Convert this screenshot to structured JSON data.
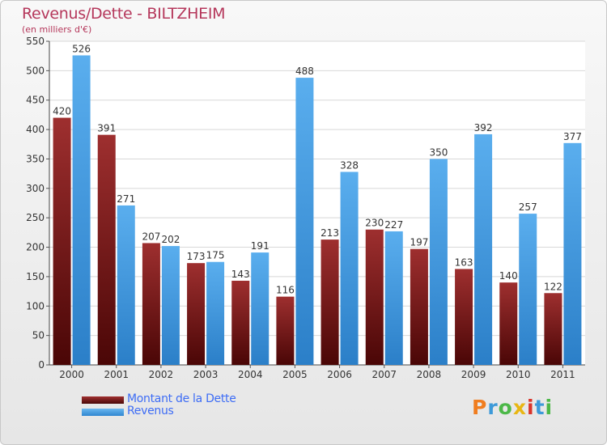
{
  "chart_data": {
    "type": "bar",
    "title": "Revenus/Dette - BILTZHEIM",
    "subtitle": "(en milliers d'€)",
    "categories": [
      "2000",
      "2001",
      "2002",
      "2003",
      "2004",
      "2005",
      "2006",
      "2007",
      "2008",
      "2009",
      "2010",
      "2011"
    ],
    "series": [
      {
        "name": "Montant de la Dette",
        "color": "#7a1a1a",
        "values": [
          420,
          391,
          207,
          173,
          143,
          116,
          213,
          230,
          197,
          163,
          140,
          122
        ]
      },
      {
        "name": "Revenus",
        "color": "#4aa0e6",
        "values": [
          526,
          271,
          202,
          175,
          191,
          488,
          328,
          227,
          350,
          392,
          257,
          377
        ]
      }
    ],
    "ylim": [
      0,
      550
    ],
    "yticks": [
      0,
      50,
      100,
      150,
      200,
      250,
      300,
      350,
      400,
      450,
      500,
      550
    ],
    "grid": true,
    "legend": "bottom-left"
  },
  "brand": {
    "logo_text": "Proxiti",
    "logo_colors": [
      "#f07d1f",
      "#3d9ad9",
      "#4cb848",
      "#e8b613",
      "#d9342b",
      "#3d9ad9",
      "#4cb848"
    ]
  }
}
